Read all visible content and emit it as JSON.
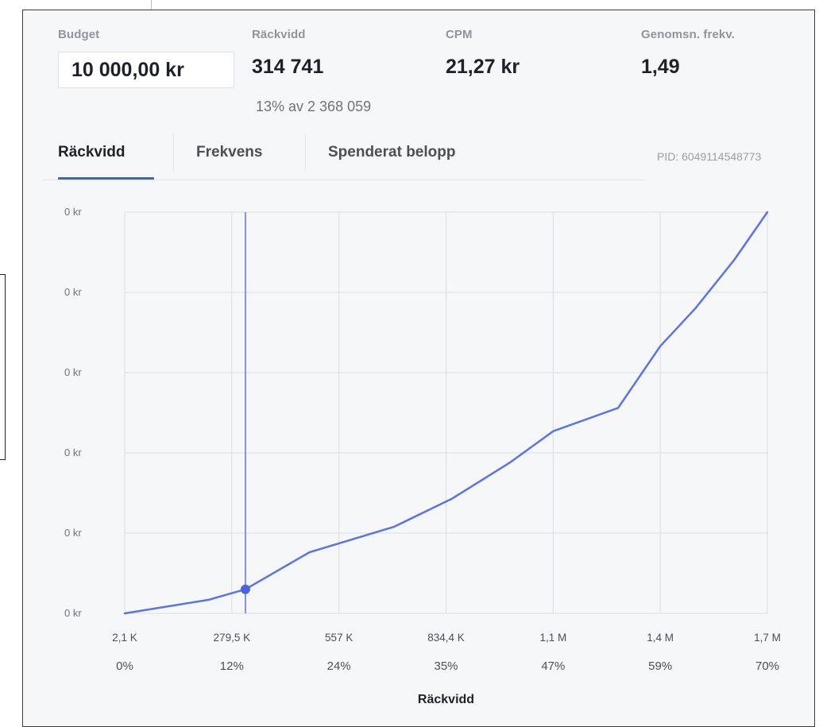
{
  "metrics": {
    "budget": {
      "label": "Budget",
      "value": "10 000,00 kr"
    },
    "reach": {
      "label": "Räckvidd",
      "value": "314 741",
      "sub": "13% av 2 368 059"
    },
    "cpm": {
      "label": "CPM",
      "value": "21,27 kr"
    },
    "frequency": {
      "label": "Genomsn. frekv.",
      "value": "1,49"
    }
  },
  "tabs": [
    {
      "label": "Räckvidd",
      "active": true
    },
    {
      "label": "Frekvens",
      "active": false
    },
    {
      "label": "Spenderat belopp",
      "active": false
    }
  ],
  "pid": "PID: 6049114548773",
  "colors": {
    "accent": "#4267b2",
    "line": "#5b73e8",
    "grid": "#dcdde0",
    "panel_bg": "#f6f7f9"
  },
  "chart_data": {
    "type": "line",
    "xlabel": "Räckvidd",
    "ylabel": "",
    "y_tick_labels": [
      "0 kr",
      "0 kr",
      "0 kr",
      "0 kr",
      "0 kr",
      "0 kr"
    ],
    "x_tick_labels": [
      "2,1 K",
      "279,5 K",
      "557 K",
      "834,4 K",
      "1,1 M",
      "1,4 M",
      "1,7 M"
    ],
    "x_tick_percent_labels": [
      "0%",
      "12%",
      "24%",
      "35%",
      "47%",
      "59%",
      "70%"
    ],
    "x_tick_values": [
      2100,
      279500,
      557000,
      834400,
      1111800,
      1389200,
      1666600
    ],
    "xlim": [
      2100,
      1666600
    ],
    "ylim": [
      0,
      5
    ],
    "grid": true,
    "series": [
      {
        "x": [
          2100,
          220000,
          314741,
          480000,
          700000,
          850000,
          1000000,
          1111800,
          1280000,
          1389200,
          1480000,
          1580000,
          1666600
        ],
        "y": [
          0,
          0.17,
          0.3,
          0.76,
          1.08,
          1.43,
          1.88,
          2.27,
          2.56,
          3.33,
          3.8,
          4.4,
          5.0
        ]
      }
    ],
    "selected_point": {
      "x": 314741,
      "y": 0.3
    }
  }
}
